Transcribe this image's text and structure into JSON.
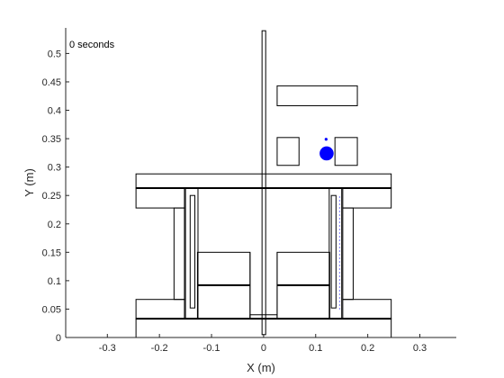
{
  "chart_data": {
    "type": "diagram",
    "annotation": "0 seconds",
    "xlabel": "X (m)",
    "ylabel": "Y (m)",
    "xlim": [
      -0.38,
      0.37
    ],
    "ylim": [
      0,
      0.545
    ],
    "xticks": [
      -0.3,
      -0.2,
      -0.1,
      0,
      0.1,
      0.2,
      0.3
    ],
    "xtick_labels": [
      "-0.3",
      "-0.2",
      "-0.1",
      "0",
      "0.1",
      "0.2",
      "0.3"
    ],
    "yticks": [
      0,
      0.05,
      0.1,
      0.15,
      0.2,
      0.25,
      0.3,
      0.35,
      0.4,
      0.45,
      0.5
    ],
    "ytick_labels": [
      "0",
      "0.05",
      "0.1",
      "0.15",
      "0.2",
      "0.25",
      "0.3",
      "0.35",
      "0.4",
      "0.45",
      "0.5"
    ],
    "grid": false,
    "line_color": "#000000",
    "ball_color": "#0000ff",
    "shapes": [
      {
        "name": "center-rod",
        "kind": "rect",
        "x0": -0.003,
        "x1": 0.004,
        "y0": 0.005,
        "y1": 0.54
      },
      {
        "name": "base-beam",
        "kind": "rect",
        "x0": -0.245,
        "x1": 0.245,
        "y0": 0.0,
        "y1": 0.033
      },
      {
        "name": "left-lower-block",
        "kind": "rect",
        "x0": -0.245,
        "x1": -0.152,
        "y0": 0.033,
        "y1": 0.067
      },
      {
        "name": "right-lower-block",
        "kind": "rect",
        "x0": 0.152,
        "x1": 0.245,
        "y0": 0.033,
        "y1": 0.067
      },
      {
        "name": "upper-beam",
        "kind": "rect",
        "x0": -0.245,
        "x1": 0.245,
        "y0": 0.263,
        "y1": 0.288
      },
      {
        "name": "left-upper-block",
        "kind": "rect",
        "x0": -0.245,
        "x1": -0.152,
        "y0": 0.228,
        "y1": 0.263
      },
      {
        "name": "right-upper-block",
        "kind": "rect",
        "x0": 0.152,
        "x1": 0.245,
        "y0": 0.228,
        "y1": 0.263
      },
      {
        "name": "left-pillar",
        "kind": "rect",
        "x0": -0.172,
        "x1": -0.152,
        "y0": 0.067,
        "y1": 0.228
      },
      {
        "name": "right-pillar",
        "kind": "rect",
        "x0": 0.152,
        "x1": 0.172,
        "y0": 0.067,
        "y1": 0.228
      },
      {
        "name": "left-frame",
        "kind": "rect",
        "x0": -0.15,
        "x1": -0.126,
        "y0": 0.033,
        "y1": 0.263
      },
      {
        "name": "right-frame",
        "kind": "rect",
        "x0": 0.126,
        "x1": 0.15,
        "y0": 0.033,
        "y1": 0.263
      },
      {
        "name": "left-rail",
        "kind": "rect",
        "x0": -0.141,
        "x1": -0.132,
        "y0": 0.052,
        "y1": 0.25
      },
      {
        "name": "right-rail",
        "kind": "rect",
        "x0": 0.13,
        "x1": 0.139,
        "y0": 0.052,
        "y1": 0.25
      },
      {
        "name": "left-carriage",
        "kind": "rect",
        "x0": -0.127,
        "x1": -0.026,
        "y0": 0.033,
        "y1": 0.15
      },
      {
        "name": "right-carriage",
        "kind": "rect",
        "x0": 0.026,
        "x1": 0.127,
        "y0": 0.033,
        "y1": 0.15
      },
      {
        "name": "center-channel",
        "kind": "rect",
        "x0": -0.026,
        "x1": 0.026,
        "y0": 0.033,
        "y1": 0.04
      },
      {
        "name": "upper-target",
        "kind": "rect",
        "x0": 0.026,
        "x1": 0.18,
        "y0": 0.408,
        "y1": 0.443
      },
      {
        "name": "left-target",
        "kind": "rect",
        "x0": 0.026,
        "x1": 0.068,
        "y0": 0.303,
        "y1": 0.352
      },
      {
        "name": "right-target",
        "kind": "rect",
        "x0": 0.137,
        "x1": 0.18,
        "y0": 0.303,
        "y1": 0.352
      },
      {
        "name": "upper-beam-seam",
        "kind": "line",
        "x0": -0.245,
        "x1": 0.245,
        "y0": 0.263,
        "y1": 0.263,
        "w": 2
      },
      {
        "name": "base-seam",
        "kind": "line",
        "x0": -0.245,
        "x1": 0.245,
        "y0": 0.033,
        "y1": 0.033,
        "w": 2
      },
      {
        "name": "left-arm",
        "kind": "line",
        "x0": -0.127,
        "x1": -0.026,
        "y0": 0.092,
        "y1": 0.092,
        "w": 2
      },
      {
        "name": "right-arm",
        "kind": "line",
        "x0": 0.026,
        "x1": 0.127,
        "y0": 0.092,
        "y1": 0.092,
        "w": 2
      },
      {
        "name": "left-carriage-divider",
        "kind": "line",
        "x0": -0.026,
        "x1": -0.026,
        "y0": 0.033,
        "y1": 0.15,
        "w": 1
      },
      {
        "name": "right-carriage-divider",
        "kind": "line",
        "x0": 0.026,
        "x1": 0.026,
        "y0": 0.033,
        "y1": 0.15,
        "w": 1
      }
    ],
    "ball": {
      "x": 0.121,
      "y": 0.324,
      "r": 0.0135
    },
    "marker": {
      "x": 0.12,
      "y": 0.349
    },
    "trajectory": {
      "x": 0.146,
      "y_from": 0.05,
      "y_to": 0.25
    }
  }
}
